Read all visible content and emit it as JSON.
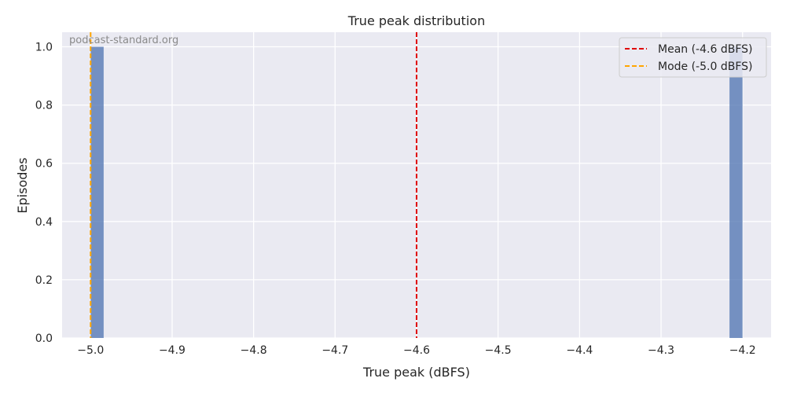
{
  "chart_data": {
    "type": "bar",
    "title": "True peak distribution",
    "xlabel": "True peak (dBFS)",
    "ylabel": "Episodes",
    "watermark": "podcast-standard.org",
    "xlim": [
      -5.035,
      -4.165
    ],
    "ylim": [
      0,
      1.05
    ],
    "x_ticks": [
      -5.0,
      -4.9,
      -4.8,
      -4.7,
      -4.6,
      -4.5,
      -4.4,
      -4.3,
      -4.2
    ],
    "x_tick_labels": [
      "−5.0",
      "−4.9",
      "−4.8",
      "−4.7",
      "−4.6",
      "−4.5",
      "−4.4",
      "−4.3",
      "−4.2"
    ],
    "y_ticks": [
      0.0,
      0.2,
      0.4,
      0.6,
      0.8,
      1.0
    ],
    "y_tick_labels": [
      "0.0",
      "0.2",
      "0.4",
      "0.6",
      "0.8",
      "1.0"
    ],
    "grid": true,
    "bars": [
      {
        "x0": -5.0,
        "x1": -4.984,
        "value": 1
      },
      {
        "x0": -4.216,
        "x1": -4.2,
        "value": 1
      }
    ],
    "bar_color": "#4c72b0",
    "vlines": [
      {
        "label": "Mean (-4.6 dBFS)",
        "x": -4.6,
        "color": "#e00000"
      },
      {
        "label": "Mode (-5.0 dBFS)",
        "x": -5.0,
        "color": "#ffa500"
      }
    ],
    "legend_position": "top-right"
  }
}
